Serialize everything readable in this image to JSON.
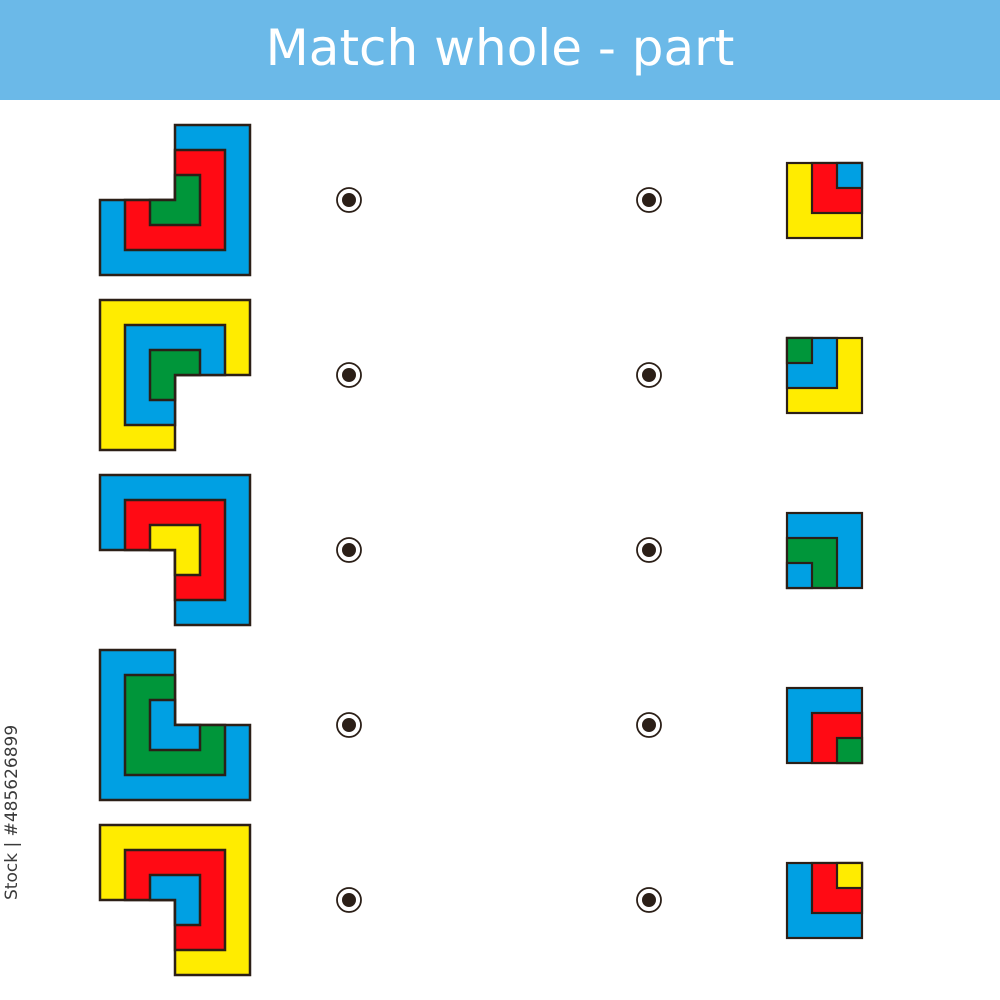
{
  "header": {
    "title": "Match whole - part"
  },
  "colors": {
    "blue": "#00A0E3",
    "red": "#FF0A14",
    "green": "#00963A",
    "yellow": "#FFEC00",
    "stroke": "#2B1F17",
    "header": "#6BB9E8"
  },
  "wholes": [
    {
      "missing_corner": "top-left",
      "layers": [
        "blue",
        "red",
        "green"
      ]
    },
    {
      "missing_corner": "bottom-right",
      "layers": [
        "yellow",
        "blue",
        "green"
      ]
    },
    {
      "missing_corner": "bottom-left",
      "layers": [
        "blue",
        "red",
        "yellow"
      ]
    },
    {
      "missing_corner": "top-right",
      "layers": [
        "blue",
        "green",
        "blue"
      ]
    },
    {
      "missing_corner": "bottom-left",
      "layers": [
        "yellow",
        "red",
        "blue"
      ]
    }
  ],
  "parts": [
    {
      "anchor": "top-right",
      "layers": [
        "yellow",
        "red",
        "blue"
      ]
    },
    {
      "anchor": "top-left",
      "layers": [
        "yellow",
        "blue",
        "green"
      ]
    },
    {
      "anchor": "bottom-left",
      "layers": [
        "blue",
        "green",
        "blue"
      ]
    },
    {
      "anchor": "bottom-right",
      "layers": [
        "blue",
        "red",
        "green"
      ]
    },
    {
      "anchor": "top-right",
      "layers": [
        "blue",
        "red",
        "yellow"
      ]
    }
  ],
  "watermark": {
    "id_text": "Stock | #485626899"
  }
}
